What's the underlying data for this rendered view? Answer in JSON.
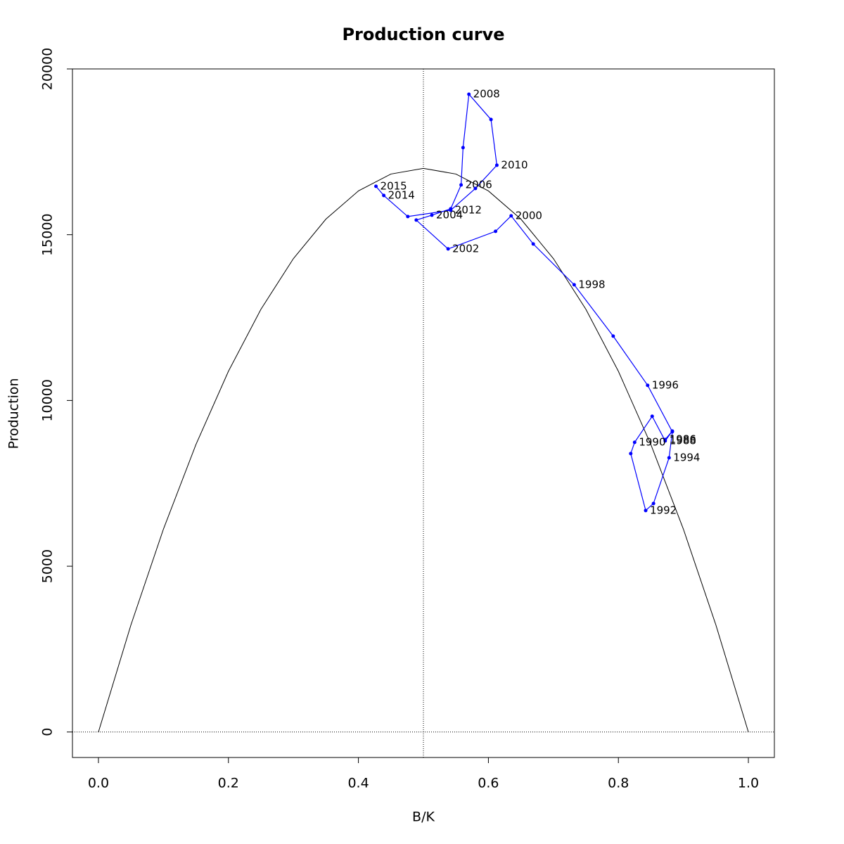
{
  "chart_data": {
    "type": "line",
    "title": "Production curve",
    "xlabel": "B/K",
    "ylabel": "Production",
    "xlim": [
      -0.04,
      1.04
    ],
    "ylim": [
      -769,
      20000
    ],
    "xticks": [
      {
        "value": 0,
        "label": "0.0"
      },
      {
        "value": 0.2,
        "label": "0.2"
      },
      {
        "value": 0.4,
        "label": "0.4"
      },
      {
        "value": 0.6,
        "label": "0.6"
      },
      {
        "value": 0.8,
        "label": "0.8"
      },
      {
        "value": 1,
        "label": "1.0"
      }
    ],
    "yticks": [
      0,
      5000,
      10000,
      15000,
      20000
    ],
    "vline": 0.5,
    "hline": 0,
    "curve": {
      "color": "#000000",
      "x": [
        0,
        0.05,
        0.1,
        0.15,
        0.2,
        0.25,
        0.3,
        0.35,
        0.4,
        0.45,
        0.5,
        0.55,
        0.6,
        0.65,
        0.7,
        0.75,
        0.8,
        0.85,
        0.9,
        0.95,
        1
      ],
      "values": [
        0,
        3230,
        6120,
        8670,
        10880,
        12750,
        14280,
        15470,
        16320,
        16830,
        17000,
        16830,
        16320,
        15470,
        14280,
        12750,
        10880,
        8670,
        6120,
        3230,
        0
      ]
    },
    "series": [
      {
        "color": "#0000ff",
        "x": [
          0.872,
          0.883,
          0.872,
          0.852,
          0.825,
          0.819,
          0.842,
          0.854,
          0.878,
          0.883,
          0.845,
          0.792,
          0.732,
          0.669,
          0.635,
          0.611,
          0.538,
          0.489,
          0.513,
          0.542,
          0.558,
          0.561,
          0.57,
          0.604,
          0.613,
          0.58,
          0.542,
          0.476,
          0.439,
          0.427
        ],
        "values": [
          8823,
          9078,
          8781,
          9523,
          8738,
          8399,
          6681,
          6893,
          8272,
          9057,
          10457,
          11941,
          13490,
          14720,
          15568,
          15102,
          14571,
          15441,
          15589,
          15780,
          16501,
          17626,
          19237,
          18474,
          17095,
          16395,
          15738,
          15547,
          16183,
          16459
        ],
        "labels": [
          "1986",
          null,
          "1988",
          null,
          "1990",
          null,
          "1992",
          null,
          "1994",
          null,
          "1996",
          null,
          "1998",
          null,
          "2000",
          null,
          "2002",
          null,
          "2004",
          null,
          "2006",
          null,
          "2008",
          null,
          "2010",
          null,
          "2012",
          null,
          "2014",
          "2015"
        ]
      }
    ]
  }
}
